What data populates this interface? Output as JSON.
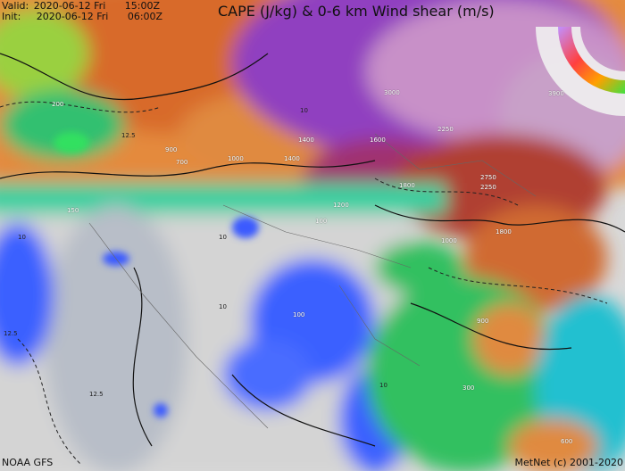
{
  "header": {
    "valid_label": "Valid:",
    "valid_value": "2020-06-12 Fri",
    "valid_time": "15:00Z",
    "init_label": "Init:",
    "init_value": "2020-06-12 Fri",
    "init_time": "06:00Z",
    "title": "CAPE (J/kg) & 0-6 km Wind shear (m/s)"
  },
  "footer": {
    "model": "NOAA GFS",
    "credit": "MetNet (c) 2001-2020"
  },
  "legend": {
    "type": "circular color scale (CAPE) with wind-barb rings",
    "colors": [
      "#7fff00",
      "#00d070",
      "#00c0ff",
      "#ffff00",
      "#ff8000",
      "#ff0000",
      "#c00080",
      "#8000c0",
      "#c080ff"
    ]
  },
  "colors": {
    "low_cape": "#d8d8d8",
    "cape_100": "#3050ff",
    "cape_300": "#20d060",
    "cape_1000": "#e07830",
    "cape_1500": "#c03020",
    "cape_2500": "#8030c0",
    "cape_3500": "#d8b0d0"
  },
  "contour_labels": [
    "1400",
    "1400",
    "1000",
    "900",
    "700",
    "1600",
    "1800",
    "1200",
    "3000",
    "2250",
    "2750",
    "2250",
    "1800",
    "1000",
    "100",
    "100",
    "300",
    "900",
    "600",
    "3900",
    "200",
    "150",
    "10",
    "10",
    "10",
    "12.5",
    "12.5",
    "10",
    "12.5",
    "10"
  ]
}
